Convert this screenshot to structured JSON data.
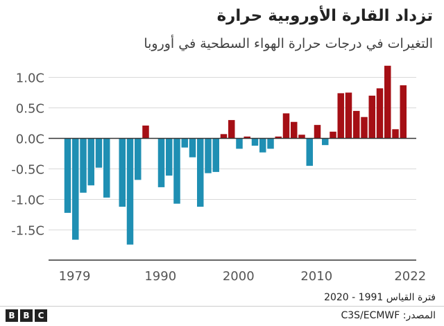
{
  "title": "تزداد القارة الأوروبية حرارة",
  "subtitle": "التغيرات  في درجات حرارة الهواء السطحية في أوروبا",
  "note": "فترة القياس 1991 - 2020",
  "source": "المصدر: C3S/ECMWF",
  "logo": [
    "B",
    "B",
    "C"
  ],
  "colors": {
    "positive": "#a50f15",
    "negative": "#1f8fb3",
    "grid": "#d9d9d9",
    "axis": "#333333",
    "tick_text": "#555555"
  },
  "chart_data": {
    "type": "bar",
    "title": "تزداد القارة الأوروبية حرارة",
    "subtitle": "التغيرات  في درجات حرارة الهواء السطحية في أوروبا",
    "x": [
      1979,
      1980,
      1981,
      1982,
      1983,
      1984,
      1985,
      1986,
      1987,
      1988,
      1989,
      1990,
      1991,
      1992,
      1993,
      1994,
      1995,
      1996,
      1997,
      1998,
      1999,
      2000,
      2001,
      2002,
      2003,
      2004,
      2005,
      2006,
      2007,
      2008,
      2009,
      2010,
      2011,
      2012,
      2013,
      2014,
      2015,
      2016,
      2017,
      2018,
      2019,
      2020,
      2021,
      2022
    ],
    "values": [
      -1.22,
      -1.66,
      -0.89,
      -0.77,
      -0.48,
      -0.97,
      0,
      -1.12,
      -1.74,
      -0.68,
      0.21,
      0,
      -0.8,
      -0.61,
      -1.07,
      -0.15,
      -0.31,
      -1.12,
      -0.57,
      -0.55,
      0.07,
      0.3,
      -0.17,
      0.03,
      -0.12,
      -0.23,
      -0.17,
      0.03,
      0.41,
      0.27,
      0.06,
      -0.45,
      0.22,
      -0.11,
      0.11,
      0.74,
      0.75,
      0.45,
      0.35,
      0.7,
      0.82,
      1.19,
      0.15,
      0.87
    ],
    "x_ticks": [
      "1979",
      "1990",
      "2000",
      "2010",
      "2022"
    ],
    "x_tick_years": [
      1979,
      1990,
      2000,
      2010,
      2022
    ],
    "y_ticks": [
      1.0,
      0.5,
      0.0,
      -0.5,
      -1.0,
      -1.5
    ],
    "y_tick_labels": [
      "1.0C",
      "0.5C",
      "0.0C",
      "-0.5C",
      "-1.0C",
      "-1.5C"
    ],
    "ylim": [
      -1.85,
      1.3
    ],
    "xlabel": "",
    "ylabel": "",
    "grid": true
  }
}
